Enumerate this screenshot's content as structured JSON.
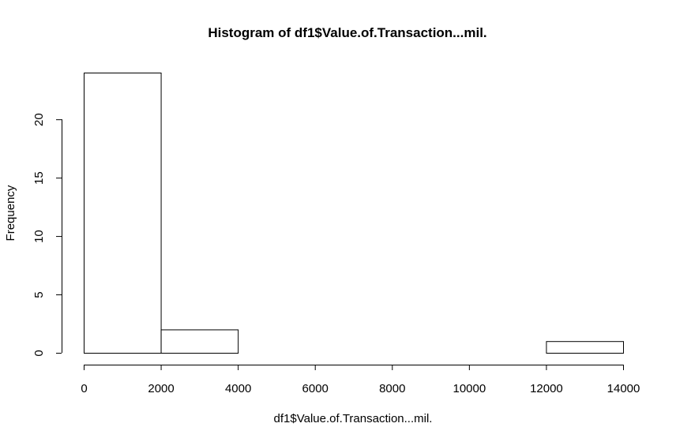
{
  "chart_data": {
    "type": "bar",
    "title": "Histogram of df1$Value.of.Transaction...mil.",
    "xlabel": "df1$Value.of.Transaction...mil.",
    "ylabel": "Frequency",
    "bins": [
      {
        "start": 0,
        "end": 2000,
        "count": 24
      },
      {
        "start": 2000,
        "end": 4000,
        "count": 2
      },
      {
        "start": 4000,
        "end": 6000,
        "count": 0
      },
      {
        "start": 6000,
        "end": 8000,
        "count": 0
      },
      {
        "start": 8000,
        "end": 10000,
        "count": 0
      },
      {
        "start": 10000,
        "end": 12000,
        "count": 0
      },
      {
        "start": 12000,
        "end": 14000,
        "count": 1
      }
    ],
    "xlim": [
      0,
      14000
    ],
    "ylim": [
      0,
      24
    ],
    "x_ticks": [
      0,
      2000,
      4000,
      6000,
      8000,
      10000,
      12000,
      14000
    ],
    "x_tick_labels": [
      "0",
      "2000",
      "4000",
      "6000",
      "8000",
      "10000",
      "12000",
      "14000"
    ],
    "y_ticks": [
      0,
      5,
      10,
      15,
      20
    ],
    "y_tick_labels": [
      "0",
      "5",
      "10",
      "15",
      "20"
    ],
    "grid": false,
    "bar_fill": "#ffffff",
    "bar_stroke": "#000000"
  }
}
